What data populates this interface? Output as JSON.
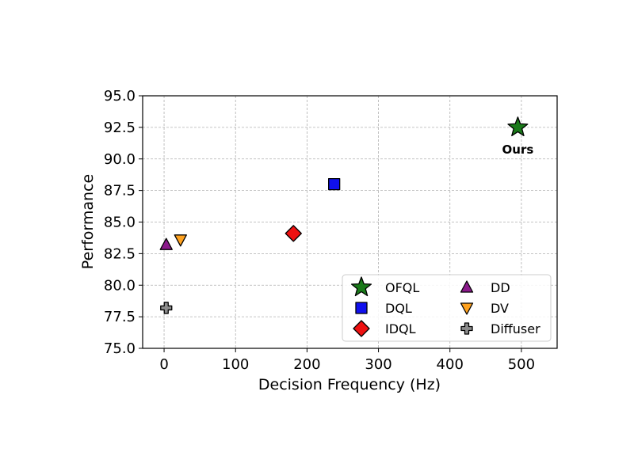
{
  "chart_data": {
    "type": "scatter",
    "title": "",
    "xlabel": "Decision Frequency (Hz)",
    "ylabel": "Performance",
    "xlim": [
      -30,
      550
    ],
    "ylim": [
      75.0,
      95.0
    ],
    "xticks": [
      0,
      100,
      200,
      300,
      400,
      500
    ],
    "xtick_labels": [
      "0",
      "100",
      "200",
      "300",
      "400",
      "500"
    ],
    "yticks": [
      75.0,
      77.5,
      80.0,
      82.5,
      85.0,
      87.5,
      90.0,
      92.5,
      95.0
    ],
    "ytick_labels": [
      "75.0",
      "77.5",
      "80.0",
      "82.5",
      "85.0",
      "87.5",
      "90.0",
      "92.5",
      "95.0"
    ],
    "grid": true,
    "legend_position": "lower-right",
    "series": [
      {
        "name": "OFQL",
        "marker": "star",
        "color": "#1a7a1a",
        "x": 495,
        "y": 92.5
      },
      {
        "name": "DQL",
        "marker": "square",
        "color": "#1010ee",
        "x": 238,
        "y": 88.0
      },
      {
        "name": "IDQL",
        "marker": "diamond",
        "color": "#ee1111",
        "x": 181,
        "y": 84.1
      },
      {
        "name": "DD",
        "marker": "triangle-up",
        "color": "#8b1a8b",
        "x": 3,
        "y": 83.2
      },
      {
        "name": "DV",
        "marker": "triangle-down",
        "color": "#ffa21f",
        "x": 23,
        "y": 83.6
      },
      {
        "name": "Diffuser",
        "marker": "plus",
        "color": "#8c8c8c",
        "x": 3,
        "y": 78.2
      }
    ],
    "annotations": [
      {
        "text": "Ours",
        "x": 495,
        "y": 92.5
      }
    ]
  }
}
